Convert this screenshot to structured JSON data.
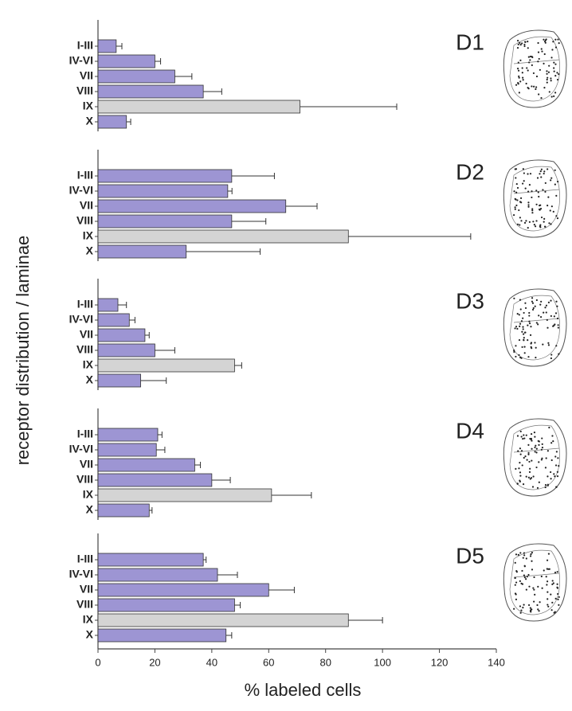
{
  "chart_data": {
    "type": "bar",
    "orientation": "horizontal",
    "xlabel": "% labeled cells",
    "ylabel": "receptor distribution / laminae",
    "xlim": [
      0,
      140
    ],
    "xticks": [
      0,
      20,
      40,
      60,
      80,
      100,
      120,
      140
    ],
    "categories": [
      "I-III",
      "IV-VI",
      "VII",
      "VIII",
      "IX",
      "X"
    ],
    "colors": [
      "#9d95d3",
      "#9d95d3",
      "#9d95d3",
      "#9d95d3",
      "#d4d4d4",
      "#9d95d3"
    ],
    "panels": [
      {
        "title": "D1",
        "values": [
          6.4,
          20,
          27,
          37,
          71,
          10
        ],
        "errors": [
          2,
          2,
          6,
          6.5,
          34,
          1.5
        ]
      },
      {
        "title": "D2",
        "values": [
          47,
          45.6,
          66,
          47,
          88,
          31
        ],
        "errors": [
          15,
          1.5,
          11,
          12,
          43,
          26
        ]
      },
      {
        "title": "D3",
        "values": [
          7,
          11,
          16.5,
          20,
          48,
          15
        ],
        "errors": [
          3,
          2,
          1.5,
          7,
          2.5,
          9
        ]
      },
      {
        "title": "D4",
        "values": [
          21,
          20.5,
          34,
          40,
          61,
          18
        ],
        "errors": [
          1.5,
          3,
          2,
          6.5,
          14,
          1
        ]
      },
      {
        "title": "D5",
        "values": [
          37,
          42,
          60,
          48,
          88,
          45
        ],
        "errors": [
          1,
          7,
          9,
          2,
          12,
          2
        ]
      }
    ]
  }
}
